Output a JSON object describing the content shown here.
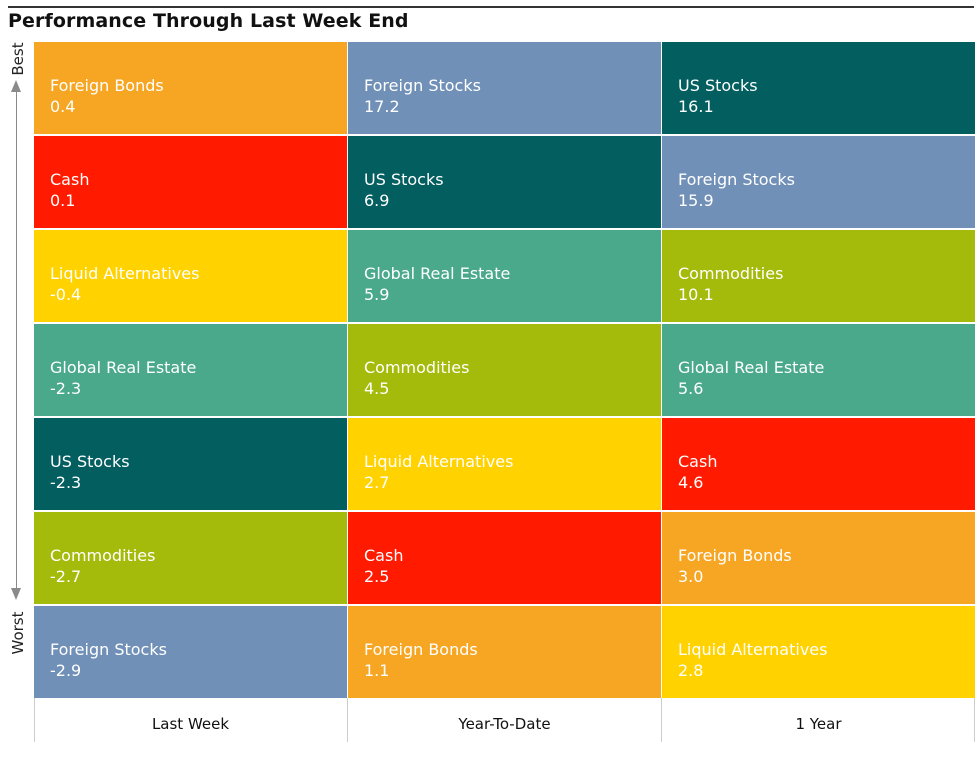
{
  "title": "Performance Through Last Week End",
  "axis": {
    "best_label": "Best",
    "worst_label": "Worst"
  },
  "columns": [
    "Last Week",
    "Year-To-Date",
    "1 Year"
  ],
  "colors": {
    "Foreign Bonds": "#F6A623",
    "Cash": "#FF1A00",
    "Liquid Alternatives": "#FFD200",
    "Global Real Estate": "#4AA98B",
    "US Stocks": "#035E60",
    "Commodities": "#A4BB0B",
    "Foreign Stocks": "#7190B8"
  },
  "chart_data": {
    "type": "table",
    "title": "Performance Through Last Week End",
    "columns": [
      {
        "label": "Last Week",
        "rows": [
          {
            "name": "Foreign Bonds",
            "value": "0.4"
          },
          {
            "name": "Cash",
            "value": "0.1"
          },
          {
            "name": "Liquid Alternatives",
            "value": "-0.4"
          },
          {
            "name": "Global Real Estate",
            "value": "-2.3"
          },
          {
            "name": "US Stocks",
            "value": "-2.3"
          },
          {
            "name": "Commodities",
            "value": "-2.7"
          },
          {
            "name": "Foreign Stocks",
            "value": "-2.9"
          }
        ]
      },
      {
        "label": "Year-To-Date",
        "rows": [
          {
            "name": "Foreign Stocks",
            "value": "17.2"
          },
          {
            "name": "US Stocks",
            "value": "6.9"
          },
          {
            "name": "Global Real Estate",
            "value": "5.9"
          },
          {
            "name": "Commodities",
            "value": "4.5"
          },
          {
            "name": "Liquid Alternatives",
            "value": "2.7"
          },
          {
            "name": "Cash",
            "value": "2.5"
          },
          {
            "name": "Foreign Bonds",
            "value": "1.1"
          }
        ]
      },
      {
        "label": "1 Year",
        "rows": [
          {
            "name": "US Stocks",
            "value": "16.1"
          },
          {
            "name": "Foreign Stocks",
            "value": "15.9"
          },
          {
            "name": "Commodities",
            "value": "10.1"
          },
          {
            "name": "Global Real Estate",
            "value": "5.6"
          },
          {
            "name": "Cash",
            "value": "4.6"
          },
          {
            "name": "Foreign Bonds",
            "value": "3.0"
          },
          {
            "name": "Liquid Alternatives",
            "value": "2.8"
          }
        ]
      }
    ]
  }
}
